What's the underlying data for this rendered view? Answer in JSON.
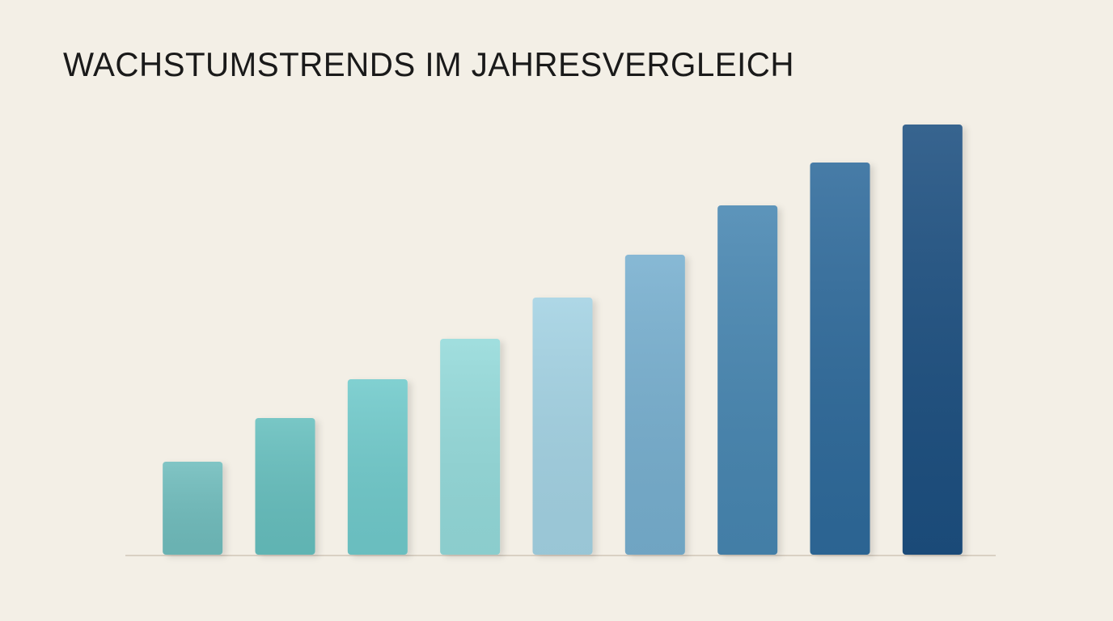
{
  "chart_data": {
    "type": "bar",
    "title": "WACHSTUMSTRENDS IM JAHRESVERGLEICH",
    "values": [
      115,
      169,
      217,
      267,
      318,
      371,
      432,
      485,
      532
    ],
    "colors": [
      "#6fbdbd",
      "#66bfbe",
      "#70cacb",
      "#94dada",
      "#a3d2e3",
      "#77afcf",
      "#4786b1",
      "#2d6a9b",
      "#1c4f80"
    ],
    "ylim": [
      0,
      600
    ],
    "grid": false
  }
}
